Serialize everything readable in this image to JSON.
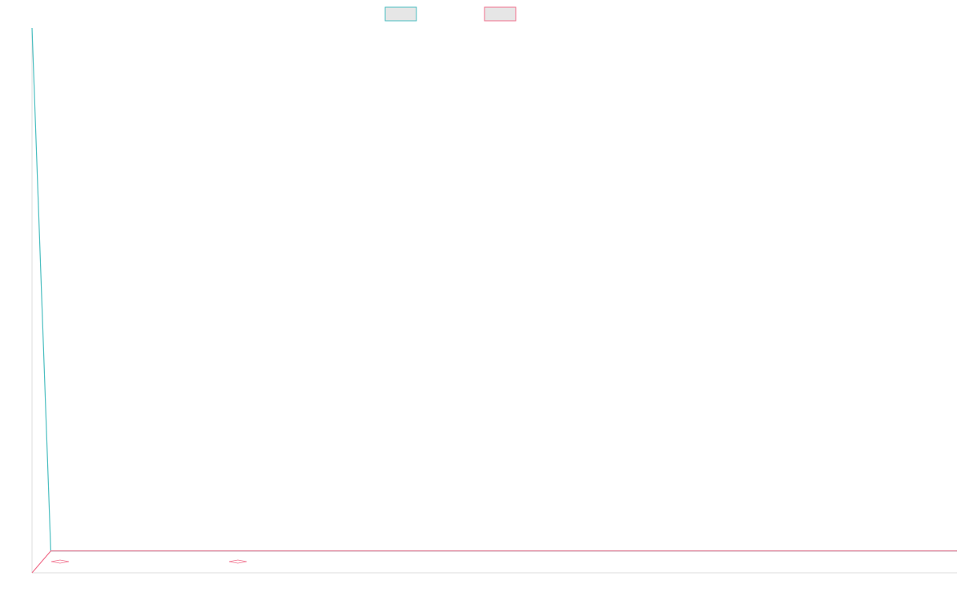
{
  "chart_data": {
    "type": "line",
    "title": "",
    "xlabel": "",
    "ylabel": "",
    "grid": false,
    "legend": {
      "placement": "top-center",
      "entries": [
        {
          "name": "",
          "color": "#4bbec0"
        },
        {
          "name": "",
          "color": "#f0708c"
        }
      ]
    },
    "xlim": [
      0,
      100
    ],
    "ylim": [
      0,
      100
    ],
    "series": [
      {
        "name": "",
        "color": "#4bbec0",
        "x": [
          0,
          1,
          100
        ],
        "y": [
          100,
          2,
          2
        ]
      },
      {
        "name": "",
        "color": "#f0708c",
        "x": [
          0,
          1,
          100
        ],
        "y": [
          0,
          2,
          2
        ]
      }
    ]
  },
  "colors": {
    "axis": "#dddddd",
    "legend_fill": "#e6e6e6"
  }
}
